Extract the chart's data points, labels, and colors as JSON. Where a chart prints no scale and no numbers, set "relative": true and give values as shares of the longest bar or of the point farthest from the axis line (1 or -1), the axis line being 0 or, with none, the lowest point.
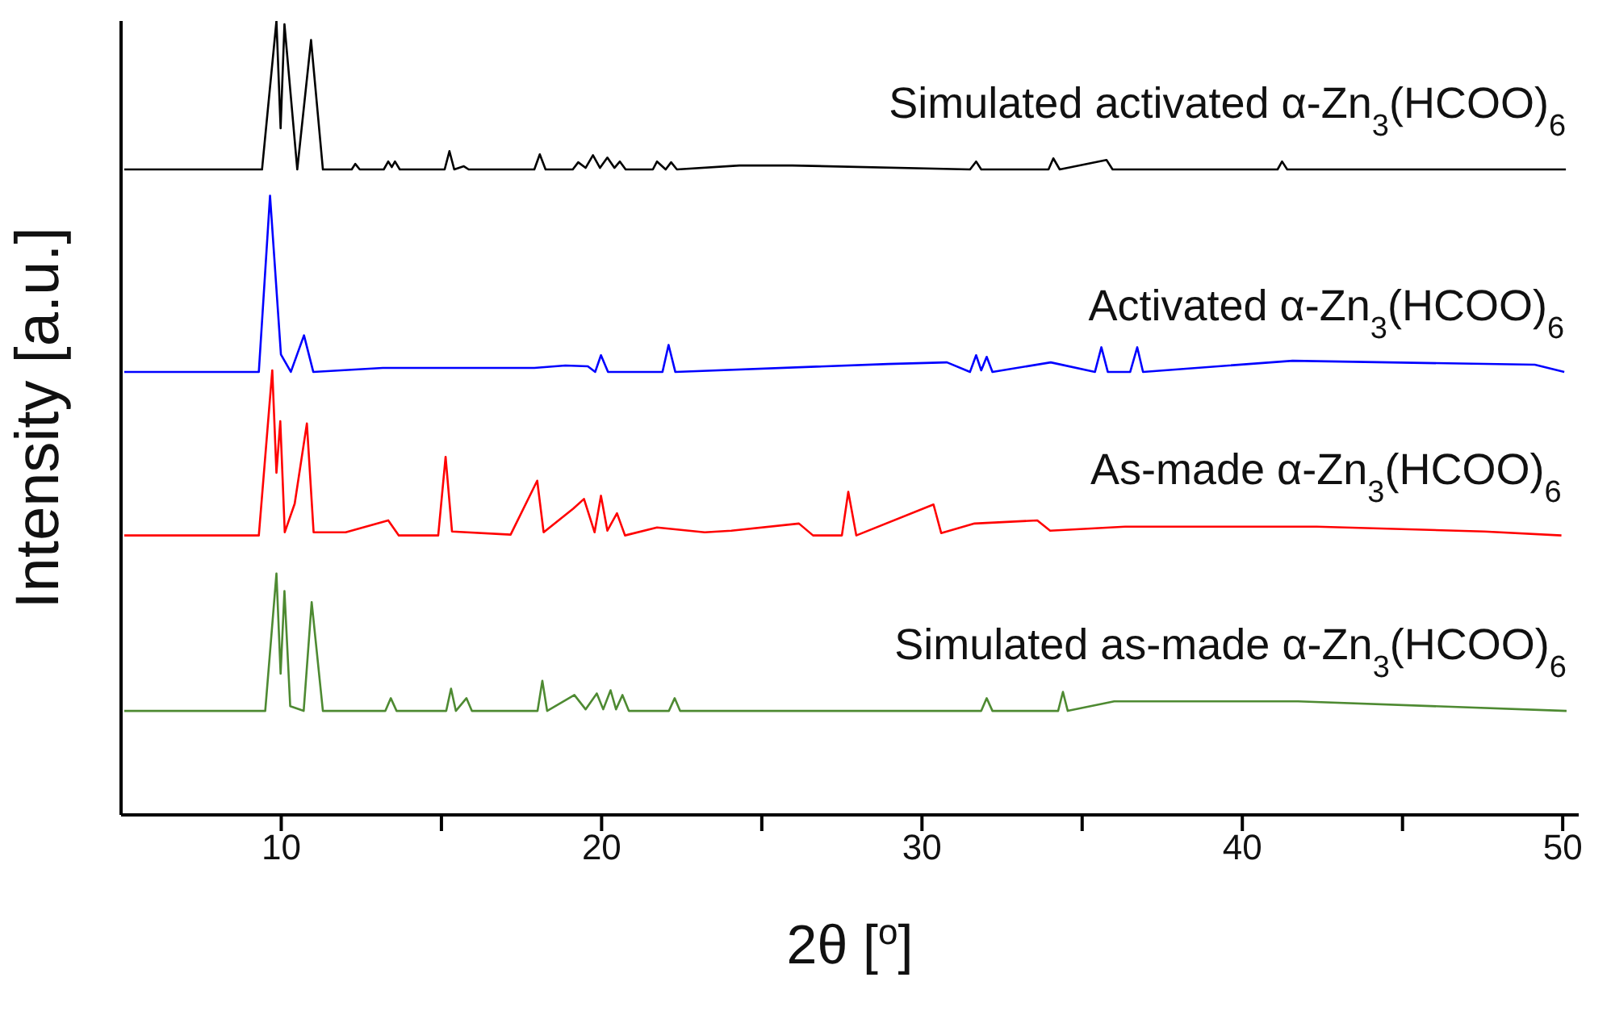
{
  "chart_data": {
    "type": "line",
    "relative": true,
    "xlabel": "2θ [$^{o}$]",
    "ylabel": "Intensity [a.u.]",
    "xlim": [
      5,
      50.5
    ],
    "xticks": [
      10,
      {
        "value": 15,
        "label": null
      },
      20,
      {
        "value": 25,
        "label": null
      },
      30,
      {
        "value": 35,
        "label": null
      },
      40,
      {
        "value": 45,
        "label": null
      },
      50
    ],
    "marker": "none",
    "line_style": "solid",
    "series": [
      {
        "name": "Simulated activated α-Zn$_{3}$(HCOO)$_{6}$",
        "color": "#000000",
        "x": [
          5.1,
          9.4,
          9.85,
          9.98,
          10.1,
          10.5,
          10.93,
          11.3,
          12.2,
          12.31,
          12.45,
          13.2,
          13.34,
          13.45,
          13.55,
          13.7,
          15.1,
          15.25,
          15.4,
          15.7,
          15.85,
          17.9,
          18.07,
          18.25,
          19.1,
          19.27,
          19.5,
          19.73,
          19.95,
          20.18,
          20.4,
          20.57,
          20.75,
          21.6,
          21.73,
          22.0,
          22.17,
          22.35,
          24.3,
          25.96,
          31.5,
          31.69,
          31.85,
          33.95,
          34.1,
          34.3,
          35.76,
          35.95,
          41.1,
          41.24,
          41.4,
          50.1
        ],
        "values": [
          0.813,
          0.813,
          1.0,
          0.865,
          0.996,
          0.813,
          0.976,
          0.813,
          0.813,
          0.82,
          0.813,
          0.813,
          0.823,
          0.816,
          0.823,
          0.813,
          0.813,
          0.836,
          0.813,
          0.817,
          0.813,
          0.813,
          0.832,
          0.813,
          0.813,
          0.822,
          0.815,
          0.831,
          0.815,
          0.828,
          0.815,
          0.823,
          0.813,
          0.813,
          0.823,
          0.813,
          0.822,
          0.813,
          0.818,
          0.818,
          0.813,
          0.823,
          0.813,
          0.813,
          0.827,
          0.813,
          0.825,
          0.813,
          0.813,
          0.823,
          0.813,
          0.813
        ]
      },
      {
        "name": "Activated α-Zn$_{3}$(HCOO)$_{6}$",
        "color": "#0000ff",
        "x": [
          5.1,
          9.3,
          9.65,
          9.99,
          10.3,
          10.71,
          11.0,
          13.17,
          15.17,
          17.9,
          18.87,
          19.57,
          19.8,
          19.98,
          20.2,
          21.9,
          22.09,
          22.3,
          28.95,
          30.78,
          31.5,
          31.69,
          31.85,
          32.02,
          32.2,
          34.02,
          35.4,
          35.6,
          35.8,
          36.5,
          36.72,
          36.9,
          41.57,
          49.13,
          50.05
        ],
        "values": [
          0.558,
          0.558,
          0.78,
          0.58,
          0.558,
          0.604,
          0.558,
          0.563,
          0.563,
          0.563,
          0.566,
          0.565,
          0.558,
          0.579,
          0.558,
          0.558,
          0.592,
          0.558,
          0.568,
          0.57,
          0.558,
          0.579,
          0.56,
          0.577,
          0.558,
          0.57,
          0.558,
          0.589,
          0.558,
          0.558,
          0.589,
          0.558,
          0.572,
          0.567,
          0.558
        ]
      },
      {
        "name": "As-made α-Zn$_{3}$(HCOO)$_{6}$",
        "color": "#ff0000",
        "x": [
          5.1,
          9.3,
          9.72,
          9.85,
          9.97,
          10.11,
          10.42,
          10.8,
          11.01,
          12.01,
          13.34,
          13.67,
          14.9,
          15.13,
          15.33,
          17.16,
          17.99,
          18.19,
          19.12,
          19.45,
          19.78,
          19.98,
          20.18,
          20.48,
          20.73,
          21.73,
          23.22,
          24.05,
          26.16,
          26.6,
          27.5,
          27.7,
          27.95,
          30.36,
          30.6,
          31.64,
          33.6,
          34.0,
          36.34,
          42.32,
          47.55,
          49.96
        ],
        "values": [
          0.352,
          0.352,
          0.56,
          0.431,
          0.496,
          0.356,
          0.392,
          0.493,
          0.356,
          0.356,
          0.371,
          0.352,
          0.352,
          0.451,
          0.357,
          0.353,
          0.421,
          0.356,
          0.386,
          0.398,
          0.356,
          0.402,
          0.358,
          0.38,
          0.352,
          0.362,
          0.356,
          0.358,
          0.367,
          0.352,
          0.352,
          0.407,
          0.352,
          0.391,
          0.355,
          0.367,
          0.371,
          0.358,
          0.363,
          0.363,
          0.357,
          0.352
        ]
      },
      {
        "name": "Simulated as-made α-Zn$_{3}$(HCOO)$_{6}$",
        "color": "#4e8a32",
        "x": [
          5.1,
          8.44,
          9.5,
          9.85,
          9.98,
          10.1,
          10.28,
          10.7,
          10.95,
          11.3,
          13.25,
          13.42,
          13.6,
          15.15,
          15.3,
          15.45,
          15.78,
          15.95,
          18.0,
          18.15,
          18.3,
          19.15,
          19.5,
          19.85,
          20.05,
          20.28,
          20.45,
          20.65,
          20.85,
          22.1,
          22.28,
          22.45,
          31.85,
          32.02,
          32.2,
          34.25,
          34.4,
          34.55,
          36.0,
          41.74,
          50.12
        ],
        "values": [
          0.131,
          0.131,
          0.131,
          0.304,
          0.178,
          0.282,
          0.137,
          0.131,
          0.268,
          0.131,
          0.131,
          0.147,
          0.131,
          0.131,
          0.159,
          0.131,
          0.147,
          0.131,
          0.131,
          0.169,
          0.131,
          0.151,
          0.133,
          0.153,
          0.133,
          0.157,
          0.133,
          0.151,
          0.131,
          0.131,
          0.147,
          0.131,
          0.131,
          0.147,
          0.131,
          0.131,
          0.155,
          0.131,
          0.143,
          0.143,
          0.131
        ]
      }
    ]
  }
}
